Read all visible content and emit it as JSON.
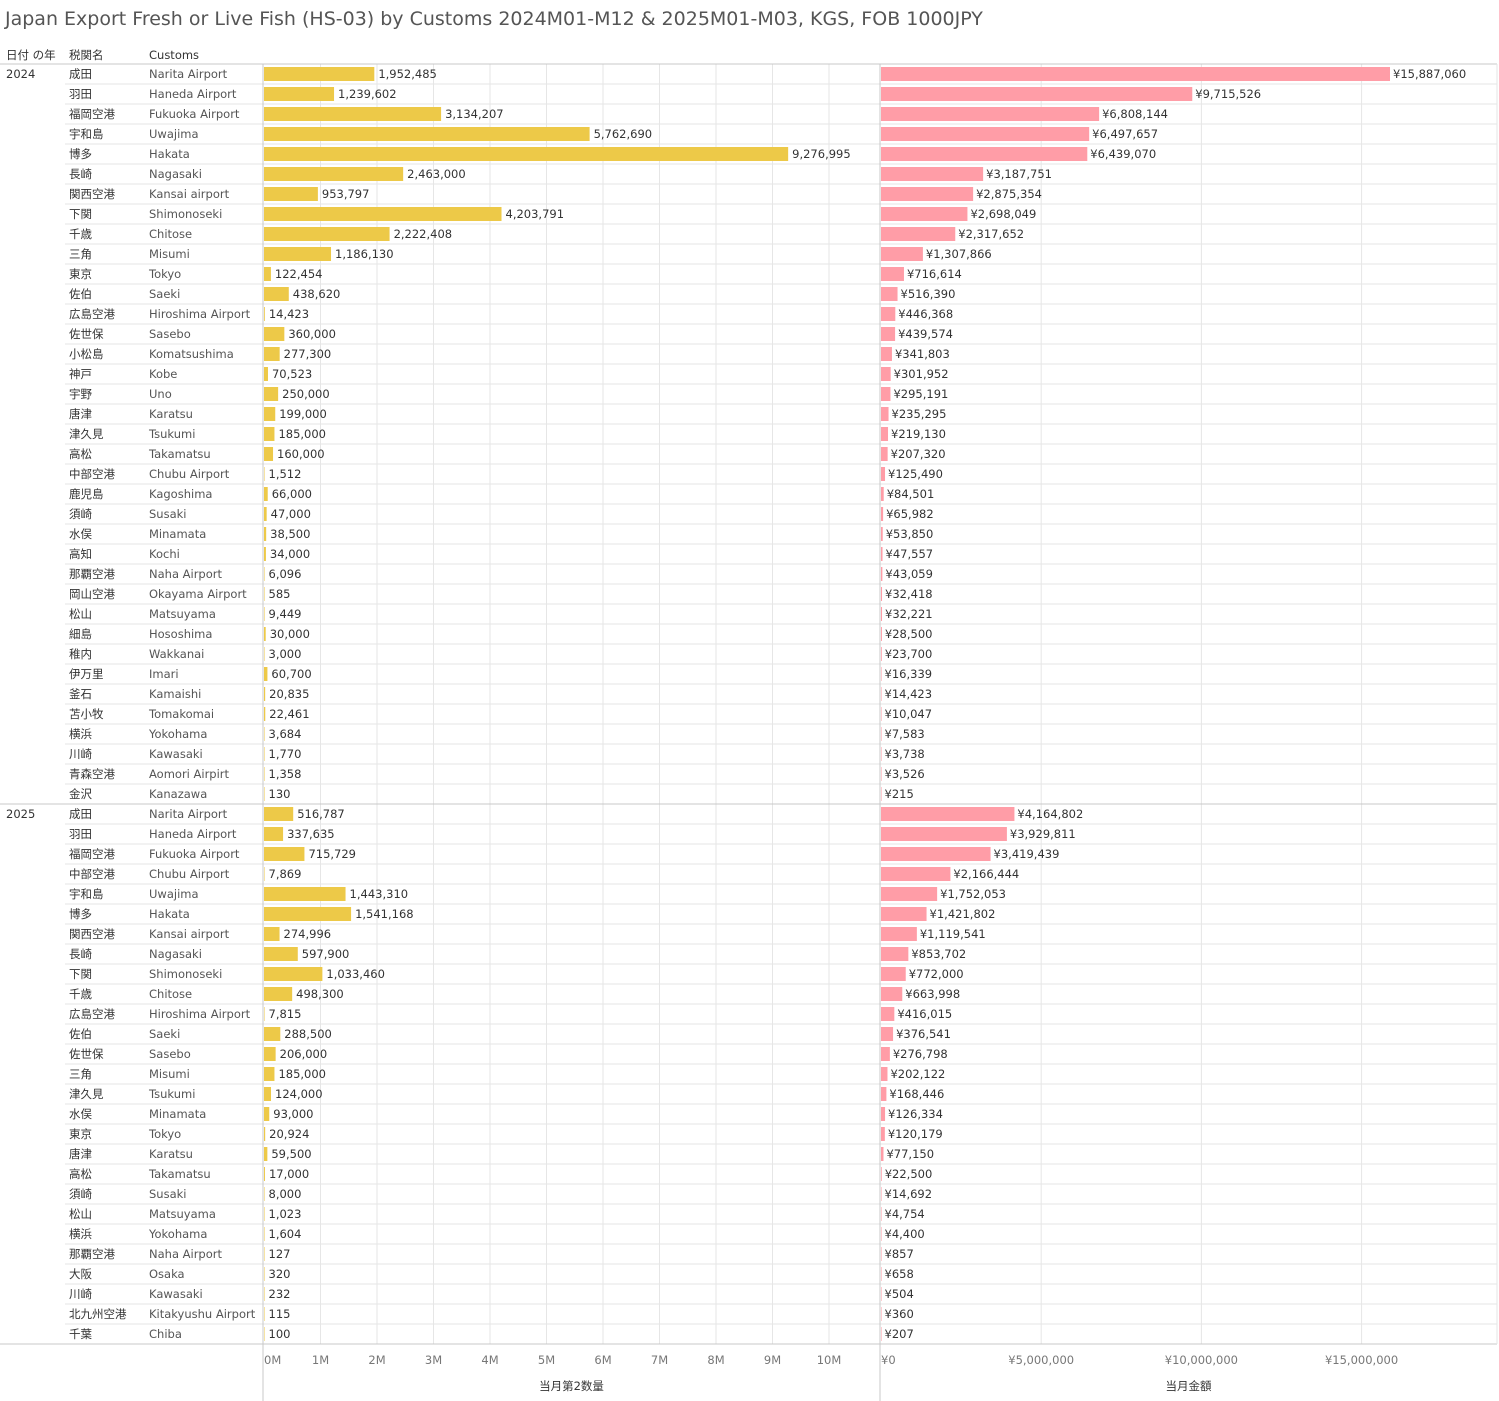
{
  "title": "Japan Export Fresh or Live Fish (HS-03) by Customs 2024M01-M12 & 2025M01-M03, KGS, FOB 1000JPY",
  "headers": {
    "year": "日付 の年",
    "office": "税関名",
    "customs": "Customs"
  },
  "colors": {
    "quantity": "#EDC948",
    "value": "#FF9DA7",
    "grid": "#e6e6e6",
    "divider": "#c8c8c8"
  },
  "chart_data": [
    {
      "type": "bar",
      "orientation": "horizontal",
      "measure": "quantity",
      "xlabel": "当月第2数量",
      "xlim": [
        0,
        10900000
      ],
      "ticks": [
        0,
        1000000,
        2000000,
        3000000,
        4000000,
        5000000,
        6000000,
        7000000,
        8000000,
        9000000,
        10000000
      ],
      "tick_labels": [
        "0M",
        "1M",
        "2M",
        "3M",
        "4M",
        "5M",
        "6M",
        "7M",
        "8M",
        "9M",
        "10M"
      ]
    },
    {
      "type": "bar",
      "orientation": "horizontal",
      "measure": "value",
      "xlabel": "当月金額",
      "xlim": [
        0,
        19400000
      ],
      "ticks": [
        0,
        5000000,
        10000000,
        15000000
      ],
      "tick_labels": [
        "¥0",
        "¥5,000,000",
        "¥10,000,000",
        "¥15,000,000"
      ]
    }
  ],
  "groups": [
    {
      "year": "2024",
      "rows": [
        {
          "jp": "成田",
          "en": "Narita Airport",
          "quantity": 1952485,
          "quantity_label": "1,952,485",
          "value": 15887060,
          "value_label": "¥15,887,060"
        },
        {
          "jp": "羽田",
          "en": "Haneda Airport",
          "quantity": 1239602,
          "quantity_label": "1,239,602",
          "value": 9715526,
          "value_label": "¥9,715,526"
        },
        {
          "jp": "福岡空港",
          "en": "Fukuoka Airport",
          "quantity": 3134207,
          "quantity_label": "3,134,207",
          "value": 6808144,
          "value_label": "¥6,808,144"
        },
        {
          "jp": "宇和島",
          "en": "Uwajima",
          "quantity": 5762690,
          "quantity_label": "5,762,690",
          "value": 6497657,
          "value_label": "¥6,497,657"
        },
        {
          "jp": "博多",
          "en": "Hakata",
          "quantity": 9276995,
          "quantity_label": "9,276,995",
          "value": 6439070,
          "value_label": "¥6,439,070"
        },
        {
          "jp": "長崎",
          "en": "Nagasaki",
          "quantity": 2463000,
          "quantity_label": "2,463,000",
          "value": 3187751,
          "value_label": "¥3,187,751"
        },
        {
          "jp": "関西空港",
          "en": "Kansai airport",
          "quantity": 953797,
          "quantity_label": "953,797",
          "value": 2875354,
          "value_label": "¥2,875,354"
        },
        {
          "jp": "下関",
          "en": "Shimonoseki",
          "quantity": 4203791,
          "quantity_label": "4,203,791",
          "value": 2698049,
          "value_label": "¥2,698,049"
        },
        {
          "jp": "千歳",
          "en": "Chitose",
          "quantity": 2222408,
          "quantity_label": "2,222,408",
          "value": 2317652,
          "value_label": "¥2,317,652"
        },
        {
          "jp": "三角",
          "en": "Misumi",
          "quantity": 1186130,
          "quantity_label": "1,186,130",
          "value": 1307866,
          "value_label": "¥1,307,866"
        },
        {
          "jp": "東京",
          "en": "Tokyo",
          "quantity": 122454,
          "quantity_label": "122,454",
          "value": 716614,
          "value_label": "¥716,614"
        },
        {
          "jp": "佐伯",
          "en": "Saeki",
          "quantity": 438620,
          "quantity_label": "438,620",
          "value": 516390,
          "value_label": "¥516,390"
        },
        {
          "jp": "広島空港",
          "en": "Hiroshima Airport",
          "quantity": 14423,
          "quantity_label": "14,423",
          "value": 446368,
          "value_label": "¥446,368"
        },
        {
          "jp": "佐世保",
          "en": "Sasebo",
          "quantity": 360000,
          "quantity_label": "360,000",
          "value": 439574,
          "value_label": "¥439,574"
        },
        {
          "jp": "小松島",
          "en": "Komatsushima",
          "quantity": 277300,
          "quantity_label": "277,300",
          "value": 341803,
          "value_label": "¥341,803"
        },
        {
          "jp": "神戸",
          "en": "Kobe",
          "quantity": 70523,
          "quantity_label": "70,523",
          "value": 301952,
          "value_label": "¥301,952"
        },
        {
          "jp": "宇野",
          "en": "Uno",
          "quantity": 250000,
          "quantity_label": "250,000",
          "value": 295191,
          "value_label": "¥295,191"
        },
        {
          "jp": "唐津",
          "en": "Karatsu",
          "quantity": 199000,
          "quantity_label": "199,000",
          "value": 235295,
          "value_label": "¥235,295"
        },
        {
          "jp": "津久見",
          "en": "Tsukumi",
          "quantity": 185000,
          "quantity_label": "185,000",
          "value": 219130,
          "value_label": "¥219,130"
        },
        {
          "jp": "高松",
          "en": "Takamatsu",
          "quantity": 160000,
          "quantity_label": "160,000",
          "value": 207320,
          "value_label": "¥207,320"
        },
        {
          "jp": "中部空港",
          "en": "Chubu Airport",
          "quantity": 1512,
          "quantity_label": "1,512",
          "value": 125490,
          "value_label": "¥125,490"
        },
        {
          "jp": "鹿児島",
          "en": "Kagoshima",
          "quantity": 66000,
          "quantity_label": "66,000",
          "value": 84501,
          "value_label": "¥84,501"
        },
        {
          "jp": "須崎",
          "en": "Susaki",
          "quantity": 47000,
          "quantity_label": "47,000",
          "value": 65982,
          "value_label": "¥65,982"
        },
        {
          "jp": "水俣",
          "en": "Minamata",
          "quantity": 38500,
          "quantity_label": "38,500",
          "value": 53850,
          "value_label": "¥53,850"
        },
        {
          "jp": "高知",
          "en": "Kochi",
          "quantity": 34000,
          "quantity_label": "34,000",
          "value": 47557,
          "value_label": "¥47,557"
        },
        {
          "jp": "那覇空港",
          "en": "Naha Airport",
          "quantity": 6096,
          "quantity_label": "6,096",
          "value": 43059,
          "value_label": "¥43,059"
        },
        {
          "jp": "岡山空港",
          "en": "Okayama Airport",
          "quantity": 585,
          "quantity_label": "585",
          "value": 32418,
          "value_label": "¥32,418"
        },
        {
          "jp": "松山",
          "en": "Matsuyama",
          "quantity": 9449,
          "quantity_label": "9,449",
          "value": 32221,
          "value_label": "¥32,221"
        },
        {
          "jp": "細島",
          "en": "Hososhima",
          "quantity": 30000,
          "quantity_label": "30,000",
          "value": 28500,
          "value_label": "¥28,500"
        },
        {
          "jp": "稚内",
          "en": "Wakkanai",
          "quantity": 3000,
          "quantity_label": "3,000",
          "value": 23700,
          "value_label": "¥23,700"
        },
        {
          "jp": "伊万里",
          "en": "Imari",
          "quantity": 60700,
          "quantity_label": "60,700",
          "value": 16339,
          "value_label": "¥16,339"
        },
        {
          "jp": "釜石",
          "en": "Kamaishi",
          "quantity": 20835,
          "quantity_label": "20,835",
          "value": 14423,
          "value_label": "¥14,423"
        },
        {
          "jp": "苫小牧",
          "en": "Tomakomai",
          "quantity": 22461,
          "quantity_label": "22,461",
          "value": 10047,
          "value_label": "¥10,047"
        },
        {
          "jp": "横浜",
          "en": "Yokohama",
          "quantity": 3684,
          "quantity_label": "3,684",
          "value": 7583,
          "value_label": "¥7,583"
        },
        {
          "jp": "川崎",
          "en": "Kawasaki",
          "quantity": 1770,
          "quantity_label": "1,770",
          "value": 3738,
          "value_label": "¥3,738"
        },
        {
          "jp": "青森空港",
          "en": "Aomori Airpirt",
          "quantity": 1358,
          "quantity_label": "1,358",
          "value": 3526,
          "value_label": "¥3,526"
        },
        {
          "jp": "金沢",
          "en": "Kanazawa",
          "quantity": 130,
          "quantity_label": "130",
          "value": 215,
          "value_label": "¥215"
        }
      ]
    },
    {
      "year": "2025",
      "rows": [
        {
          "jp": "成田",
          "en": "Narita Airport",
          "quantity": 516787,
          "quantity_label": "516,787",
          "value": 4164802,
          "value_label": "¥4,164,802"
        },
        {
          "jp": "羽田",
          "en": "Haneda Airport",
          "quantity": 337635,
          "quantity_label": "337,635",
          "value": 3929811,
          "value_label": "¥3,929,811"
        },
        {
          "jp": "福岡空港",
          "en": "Fukuoka Airport",
          "quantity": 715729,
          "quantity_label": "715,729",
          "value": 3419439,
          "value_label": "¥3,419,439"
        },
        {
          "jp": "中部空港",
          "en": "Chubu Airport",
          "quantity": 7869,
          "quantity_label": "7,869",
          "value": 2166444,
          "value_label": "¥2,166,444"
        },
        {
          "jp": "宇和島",
          "en": "Uwajima",
          "quantity": 1443310,
          "quantity_label": "1,443,310",
          "value": 1752053,
          "value_label": "¥1,752,053"
        },
        {
          "jp": "博多",
          "en": "Hakata",
          "quantity": 1541168,
          "quantity_label": "1,541,168",
          "value": 1421802,
          "value_label": "¥1,421,802"
        },
        {
          "jp": "関西空港",
          "en": "Kansai airport",
          "quantity": 274996,
          "quantity_label": "274,996",
          "value": 1119541,
          "value_label": "¥1,119,541"
        },
        {
          "jp": "長崎",
          "en": "Nagasaki",
          "quantity": 597900,
          "quantity_label": "597,900",
          "value": 853702,
          "value_label": "¥853,702"
        },
        {
          "jp": "下関",
          "en": "Shimonoseki",
          "quantity": 1033460,
          "quantity_label": "1,033,460",
          "value": 772000,
          "value_label": "¥772,000"
        },
        {
          "jp": "千歳",
          "en": "Chitose",
          "quantity": 498300,
          "quantity_label": "498,300",
          "value": 663998,
          "value_label": "¥663,998"
        },
        {
          "jp": "広島空港",
          "en": "Hiroshima Airport",
          "quantity": 7815,
          "quantity_label": "7,815",
          "value": 416015,
          "value_label": "¥416,015"
        },
        {
          "jp": "佐伯",
          "en": "Saeki",
          "quantity": 288500,
          "quantity_label": "288,500",
          "value": 376541,
          "value_label": "¥376,541"
        },
        {
          "jp": "佐世保",
          "en": "Sasebo",
          "quantity": 206000,
          "quantity_label": "206,000",
          "value": 276798,
          "value_label": "¥276,798"
        },
        {
          "jp": "三角",
          "en": "Misumi",
          "quantity": 185000,
          "quantity_label": "185,000",
          "value": 202122,
          "value_label": "¥202,122"
        },
        {
          "jp": "津久見",
          "en": "Tsukumi",
          "quantity": 124000,
          "quantity_label": "124,000",
          "value": 168446,
          "value_label": "¥168,446"
        },
        {
          "jp": "水俣",
          "en": "Minamata",
          "quantity": 93000,
          "quantity_label": "93,000",
          "value": 126334,
          "value_label": "¥126,334"
        },
        {
          "jp": "東京",
          "en": "Tokyo",
          "quantity": 20924,
          "quantity_label": "20,924",
          "value": 120179,
          "value_label": "¥120,179"
        },
        {
          "jp": "唐津",
          "en": "Karatsu",
          "quantity": 59500,
          "quantity_label": "59,500",
          "value": 77150,
          "value_label": "¥77,150"
        },
        {
          "jp": "高松",
          "en": "Takamatsu",
          "quantity": 17000,
          "quantity_label": "17,000",
          "value": 22500,
          "value_label": "¥22,500"
        },
        {
          "jp": "須崎",
          "en": "Susaki",
          "quantity": 8000,
          "quantity_label": "8,000",
          "value": 14692,
          "value_label": "¥14,692"
        },
        {
          "jp": "松山",
          "en": "Matsuyama",
          "quantity": 1023,
          "quantity_label": "1,023",
          "value": 4754,
          "value_label": "¥4,754"
        },
        {
          "jp": "横浜",
          "en": "Yokohama",
          "quantity": 1604,
          "quantity_label": "1,604",
          "value": 4400,
          "value_label": "¥4,400"
        },
        {
          "jp": "那覇空港",
          "en": "Naha Airport",
          "quantity": 127,
          "quantity_label": "127",
          "value": 857,
          "value_label": "¥857"
        },
        {
          "jp": "大阪",
          "en": "Osaka",
          "quantity": 320,
          "quantity_label": "320",
          "value": 658,
          "value_label": "¥658"
        },
        {
          "jp": "川崎",
          "en": "Kawasaki",
          "quantity": 232,
          "quantity_label": "232",
          "value": 504,
          "value_label": "¥504"
        },
        {
          "jp": "北九州空港",
          "en": "Kitakyushu Airport",
          "quantity": 115,
          "quantity_label": "115",
          "value": 360,
          "value_label": "¥360"
        },
        {
          "jp": "千葉",
          "en": "Chiba",
          "quantity": 100,
          "quantity_label": "100",
          "value": 207,
          "value_label": "¥207"
        }
      ]
    }
  ]
}
